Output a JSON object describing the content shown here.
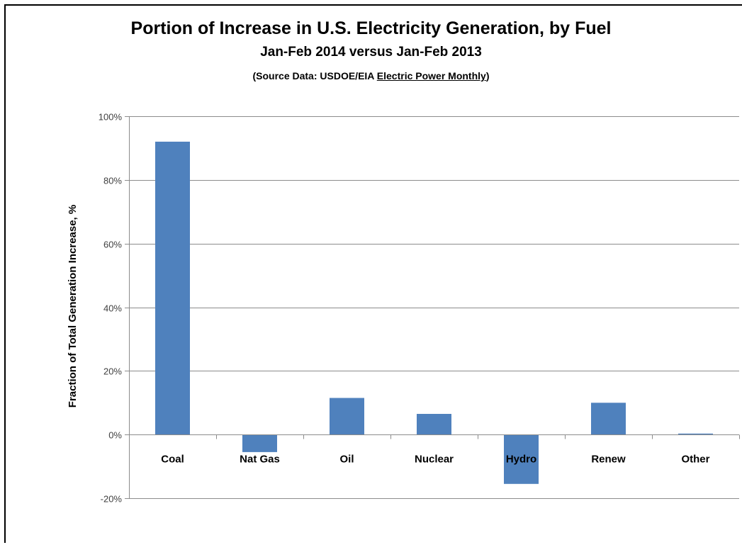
{
  "header": {
    "title": "Portion of Increase in U.S. Electricity Generation, by Fuel",
    "subtitle": "Jan-Feb 2014 versus Jan-Feb 2013",
    "source_prefix": "(Source Data:  USDOE/EIA ",
    "source_publication": "Electric Power Monthly",
    "source_suffix": ")"
  },
  "colors": {
    "bar": "#4f81bd",
    "grid": "#8c8c8c",
    "axis": "#8c8c8c"
  },
  "chart_data": {
    "type": "bar",
    "title": "Portion of Increase in U.S. Electricity Generation, by Fuel",
    "subtitle": "Jan-Feb 2014 versus Jan-Feb 2013",
    "xlabel": "",
    "ylabel": "Fraction of Total Generation Increase, %",
    "categories": [
      "Coal",
      "Nat Gas",
      "Oil",
      "Nuclear",
      "Hydro",
      "Renew",
      "Other"
    ],
    "values": [
      92,
      -5.5,
      11.5,
      6.5,
      -15.5,
      10,
      0.3
    ],
    "ylim": [
      -20,
      100
    ],
    "yticks": [
      -20,
      0,
      20,
      40,
      60,
      80,
      100
    ],
    "ytick_labels": [
      "-20%",
      "0%",
      "20%",
      "40%",
      "60%",
      "80%",
      "100%"
    ],
    "grid": true,
    "legend": false
  }
}
